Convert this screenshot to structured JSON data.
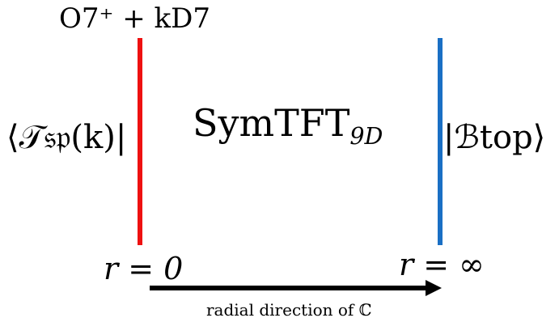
{
  "diagram": {
    "top_label": "O7⁺ + kD7",
    "left_boundary_state": "⟨𝒯𝔰𝔭(k)|",
    "center_title": "SymTFT",
    "center_title_subscript": "9D",
    "right_boundary_state": "|ℬtop⟩",
    "left_position_label": "r = 0",
    "right_position_label": "r = ∞",
    "arrow_label": "radial direction of ℂ",
    "colors": {
      "left_boundary_line": "#ee1111",
      "right_boundary_line": "#1a6fc4",
      "arrow": "#000000"
    }
  }
}
